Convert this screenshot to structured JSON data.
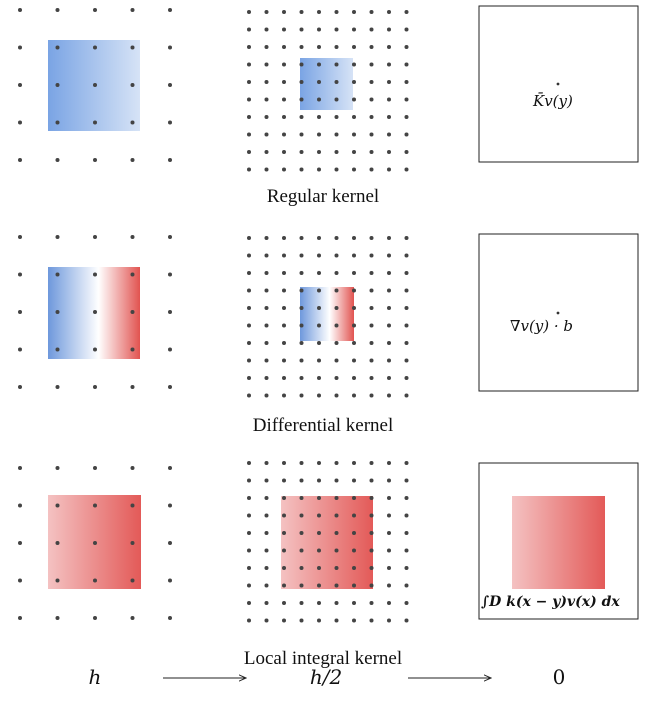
{
  "captions": {
    "row1": "Regular kernel",
    "row2": "Differential kernel",
    "row3": "Local integral kernel"
  },
  "formulas": {
    "regular": "K̄v(y)",
    "differential": "∇v(y) · b",
    "integral": "∫D k(x − y)v(x) dx"
  },
  "scale_labels": [
    "h",
    "h/2",
    "0"
  ],
  "colors": {
    "dot": "#444444",
    "blue": "#4a84d8",
    "red": "#e04a48",
    "frame": "#222222"
  }
}
